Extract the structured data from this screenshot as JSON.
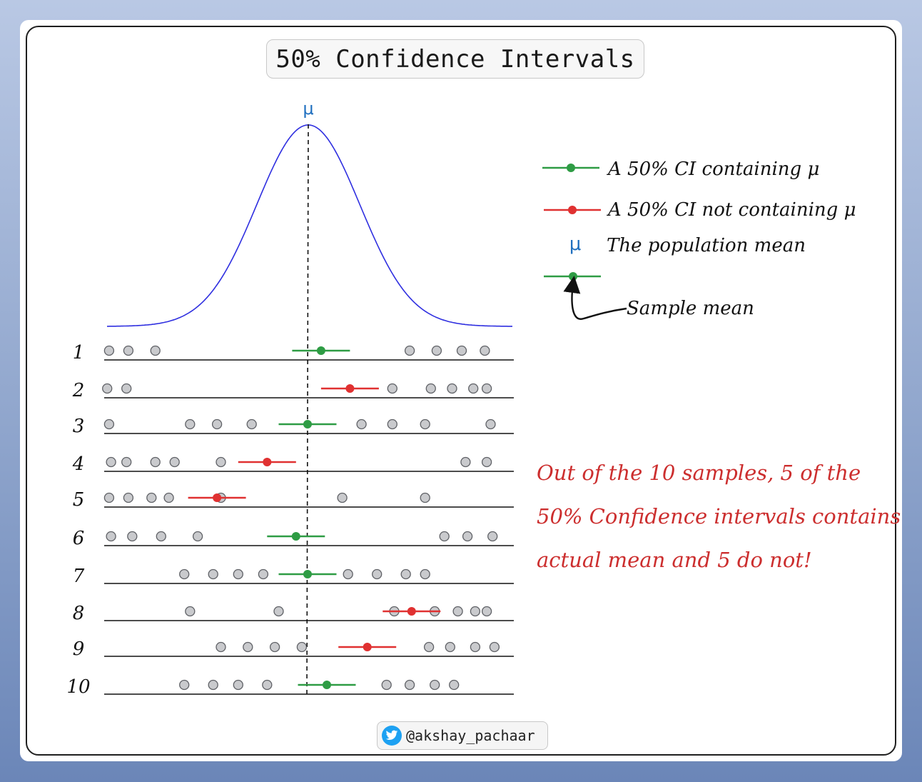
{
  "title": "50% Confidence Intervals",
  "mu_label": "μ",
  "legend": {
    "containing": "A 50% CI containing μ",
    "not_containing": "A 50% CI not containing μ",
    "mu_symbol": "μ",
    "population_mean": "The population mean",
    "sample_mean": "Sample mean"
  },
  "note_lines": [
    "Out of the 10 samples, 5 of the",
    "50% Confidence intervals contains",
    "actual mean and 5 do not!"
  ],
  "credit": "@akshay_pachaar",
  "colors": {
    "contains": "#2e9c44",
    "not_contains": "#e03131",
    "curve": "#2f2fe0",
    "mu": "#1f6fbf",
    "point_fill": "#c9cacd",
    "point_stroke": "#5f6166",
    "note": "#cc2e2e"
  },
  "chart_data": {
    "type": "scatter",
    "population_mean": 0,
    "samples": [
      {
        "label": "1",
        "contains_mu": true,
        "points": [
          -10.3,
          -9.3,
          -7.9,
          5.3,
          6.7,
          8.0,
          9.2
        ],
        "mean": 0.7,
        "ci": [
          -0.8,
          2.2
        ]
      },
      {
        "label": "2",
        "contains_mu": false,
        "points": [
          -10.4,
          -9.4,
          4.4,
          6.4,
          7.5,
          8.6,
          9.3
        ],
        "mean": 2.2,
        "ci": [
          0.7,
          3.7
        ]
      },
      {
        "label": "3",
        "contains_mu": true,
        "points": [
          -10.3,
          -6.1,
          -4.7,
          -2.9,
          2.8,
          4.4,
          6.1,
          9.5
        ],
        "mean": 0.0,
        "ci": [
          -1.5,
          1.5
        ]
      },
      {
        "label": "4",
        "contains_mu": false,
        "points": [
          -10.2,
          -9.4,
          -7.9,
          -6.9,
          -4.5,
          8.2,
          9.3
        ],
        "mean": -2.1,
        "ci": [
          -3.6,
          -0.6
        ]
      },
      {
        "label": "5",
        "contains_mu": false,
        "points": [
          -10.3,
          -9.3,
          -8.1,
          -7.2,
          -4.5,
          1.8,
          6.1
        ],
        "mean": -4.7,
        "ci": [
          -6.2,
          -3.2
        ]
      },
      {
        "label": "6",
        "contains_mu": true,
        "points": [
          -10.2,
          -9.1,
          -7.6,
          -5.7,
          7.1,
          8.3,
          9.6
        ],
        "mean": -0.6,
        "ci": [
          -2.1,
          0.9
        ]
      },
      {
        "label": "7",
        "contains_mu": true,
        "points": [
          -6.4,
          -4.9,
          -3.6,
          -2.3,
          2.1,
          3.6,
          5.1,
          6.1
        ],
        "mean": 0.0,
        "ci": [
          -1.5,
          1.5
        ]
      },
      {
        "label": "8",
        "contains_mu": false,
        "points": [
          -6.1,
          -1.5,
          4.5,
          6.6,
          7.8,
          8.7,
          9.3
        ],
        "mean": 5.4,
        "ci": [
          3.9,
          6.9
        ]
      },
      {
        "label": "9",
        "contains_mu": false,
        "points": [
          -4.5,
          -3.1,
          -1.7,
          -0.3,
          6.3,
          7.4,
          8.7,
          9.7
        ],
        "mean": 3.1,
        "ci": [
          1.6,
          4.6
        ]
      },
      {
        "label": "10",
        "contains_mu": true,
        "points": [
          -6.4,
          -4.9,
          -3.6,
          -2.1,
          4.1,
          5.3,
          6.6,
          7.6
        ],
        "mean": 1.0,
        "ci": [
          -0.5,
          2.5
        ]
      }
    ]
  }
}
